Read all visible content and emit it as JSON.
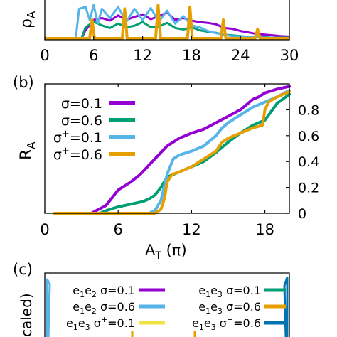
{
  "colors": {
    "purple": "#9400d3",
    "green": "#009e73",
    "lightblue": "#56b4e9",
    "orange": "#e69f00",
    "yellow": "#f0e442",
    "darkblue": "#0072b2"
  },
  "chart_data": [
    {
      "type": "line",
      "panel_label": "",
      "ylabel": "ρ_A",
      "xlabel": "",
      "xlim": [
        0,
        30
      ],
      "x_ticks": [
        "0",
        "6",
        "12",
        "18",
        "24",
        "30"
      ],
      "x_tick_values": [
        0,
        6,
        12,
        18,
        24,
        30
      ],
      "series": [
        {
          "color_key": "purple",
          "x": [
            4.5,
            5,
            6,
            7,
            8,
            9,
            10,
            11,
            12,
            13,
            14,
            15,
            16,
            17,
            18,
            19,
            20,
            21,
            22,
            23,
            24,
            25,
            26,
            27,
            28,
            29,
            30
          ],
          "y": [
            0.0,
            0.22,
            0.5,
            0.55,
            0.48,
            0.62,
            0.5,
            0.58,
            0.65,
            0.52,
            0.6,
            0.7,
            0.5,
            0.55,
            0.48,
            0.44,
            0.42,
            0.38,
            0.28,
            0.26,
            0.2,
            0.16,
            0.12,
            0.1,
            0.08,
            0.06,
            0.05
          ]
        },
        {
          "color_key": "green",
          "x": [
            4.5,
            5,
            6,
            7,
            8,
            9,
            10,
            11,
            12,
            13,
            14,
            15,
            16,
            17,
            18,
            19,
            20,
            21,
            22,
            23,
            24,
            25,
            26,
            27,
            28,
            29,
            30
          ],
          "y": [
            0.0,
            0.3,
            0.45,
            0.35,
            0.28,
            0.4,
            0.3,
            0.34,
            0.44,
            0.3,
            0.32,
            0.42,
            0.28,
            0.24,
            0.3,
            0.22,
            0.18,
            0.15,
            0.1,
            0.08,
            0.06,
            0.04,
            0.03,
            0.03,
            0.02,
            0.02,
            0.02
          ]
        },
        {
          "color_key": "lightblue",
          "x": [
            3.8,
            4.2,
            5,
            5.5,
            6,
            6.5,
            7,
            8,
            9,
            10,
            11,
            12,
            13,
            14,
            15,
            16,
            17,
            18,
            19,
            20,
            21,
            22,
            23,
            24,
            25,
            26,
            27,
            28,
            29,
            30
          ],
          "y": [
            0.0,
            0.8,
            0.85,
            0.5,
            0.9,
            0.4,
            0.8,
            0.55,
            0.85,
            0.45,
            0.8,
            0.5,
            0.82,
            0.45,
            0.75,
            0.4,
            0.6,
            0.35,
            0.3,
            0.2,
            0.14,
            0.1,
            0.06,
            0.05,
            0.04,
            0.03,
            0.02,
            0.02,
            0.01,
            0.01
          ]
        },
        {
          "color_key": "orange",
          "x": [
            0,
            5.5,
            5.8,
            6.1,
            9.5,
            9.8,
            10.1,
            13.6,
            13.9,
            14.2,
            17.5,
            17.8,
            18.1,
            21.6,
            21.9,
            22.2,
            25.8,
            26.1,
            26.4,
            30
          ],
          "y": [
            0,
            0,
            0.5,
            0,
            0,
            0.8,
            0,
            0,
            0.9,
            0,
            0,
            0.85,
            0,
            0,
            0.5,
            0,
            0,
            0.25,
            0,
            0
          ]
        }
      ]
    },
    {
      "type": "line",
      "panel_label": "(b)",
      "ylabel": "R_A",
      "xlabel": "A_T (π)",
      "xlim": [
        0,
        20
      ],
      "ylim": [
        0,
        1
      ],
      "x_ticks": [
        "0",
        "6",
        "12",
        "18"
      ],
      "x_tick_values": [
        0,
        6,
        12,
        18
      ],
      "y_ticks": [
        "0",
        "0.2",
        "0.4",
        "0.6",
        "0.8"
      ],
      "y_tick_values": [
        0,
        0.2,
        0.4,
        0.6,
        0.8
      ],
      "legend_position": "top-left",
      "series": [
        {
          "name_main": "σ=0.1",
          "name_sup": "",
          "name_tail": "",
          "color_key": "purple",
          "x": [
            0.8,
            3.8,
            4.2,
            5,
            5.5,
            6,
            7,
            7.8,
            8.6,
            9.4,
            10,
            11,
            12,
            13,
            14,
            15,
            16,
            16.5,
            17,
            17.5,
            18,
            19,
            20
          ],
          "y": [
            0,
            0,
            0.02,
            0.06,
            0.12,
            0.18,
            0.24,
            0.3,
            0.38,
            0.46,
            0.52,
            0.58,
            0.62,
            0.65,
            0.7,
            0.75,
            0.8,
            0.84,
            0.88,
            0.9,
            0.93,
            0.96,
            0.98
          ]
        },
        {
          "name_main": "σ=0.6",
          "name_sup": "",
          "name_tail": "",
          "color_key": "green",
          "x": [
            0.8,
            4.5,
            5,
            6,
            7,
            8,
            8.5,
            9,
            9.5,
            10,
            11,
            12,
            13,
            14,
            15,
            16,
            17,
            18,
            19,
            20
          ],
          "y": [
            0,
            0,
            0.02,
            0.05,
            0.07,
            0.09,
            0.11,
            0.14,
            0.2,
            0.28,
            0.32,
            0.36,
            0.4,
            0.47,
            0.55,
            0.62,
            0.68,
            0.72,
            0.85,
            0.92
          ]
        },
        {
          "name_main": "σ",
          "name_sup": "+",
          "name_tail": "=0.1",
          "color_key": "lightblue",
          "x": [
            0.8,
            8.5,
            9,
            9.5,
            10,
            10.5,
            11,
            12,
            13,
            14,
            14.5,
            15,
            16,
            17,
            18,
            19,
            20
          ],
          "y": [
            0,
            0,
            0.02,
            0.1,
            0.3,
            0.42,
            0.45,
            0.48,
            0.52,
            0.6,
            0.66,
            0.7,
            0.76,
            0.82,
            0.86,
            0.9,
            0.95
          ]
        },
        {
          "name_main": "σ",
          "name_sup": "+",
          "name_tail": "=0.6",
          "color_key": "orange",
          "x": [
            0.8,
            9,
            9.5,
            9.8,
            10,
            10.4,
            11,
            12,
            13,
            14,
            14.5,
            15,
            16,
            17,
            17.8,
            18,
            18.3,
            19,
            20
          ],
          "y": [
            0,
            0,
            0.03,
            0.12,
            0.24,
            0.3,
            0.32,
            0.36,
            0.42,
            0.48,
            0.55,
            0.58,
            0.62,
            0.66,
            0.68,
            0.8,
            0.86,
            0.9,
            0.94
          ]
        }
      ]
    },
    {
      "type": "line",
      "panel_label": "(c)",
      "ylabel": "caled)",
      "legend": [
        {
          "e_a": "1",
          "e_b": "2",
          "sigma": "σ",
          "sup": "",
          "val": "=0.1",
          "color_key": "purple"
        },
        {
          "e_a": "1",
          "e_b": "3",
          "sigma": "σ",
          "sup": "",
          "val": "=0.1",
          "color_key": "green"
        },
        {
          "e_a": "1",
          "e_b": "2",
          "sigma": "σ",
          "sup": "",
          "val": "=0.6",
          "color_key": "lightblue"
        },
        {
          "e_a": "1",
          "e_b": "3",
          "sigma": "σ",
          "sup": "",
          "val": "=0.6",
          "color_key": "orange"
        },
        {
          "e_a": "1",
          "e_b": "3",
          "sigma": "σ",
          "sup": "+",
          "val": "=0.1",
          "color_key": "yellow"
        },
        {
          "e_a": "1",
          "e_b": "3",
          "sigma": "σ",
          "sup": "+",
          "val": "=0.6",
          "color_key": "darkblue"
        }
      ]
    }
  ]
}
